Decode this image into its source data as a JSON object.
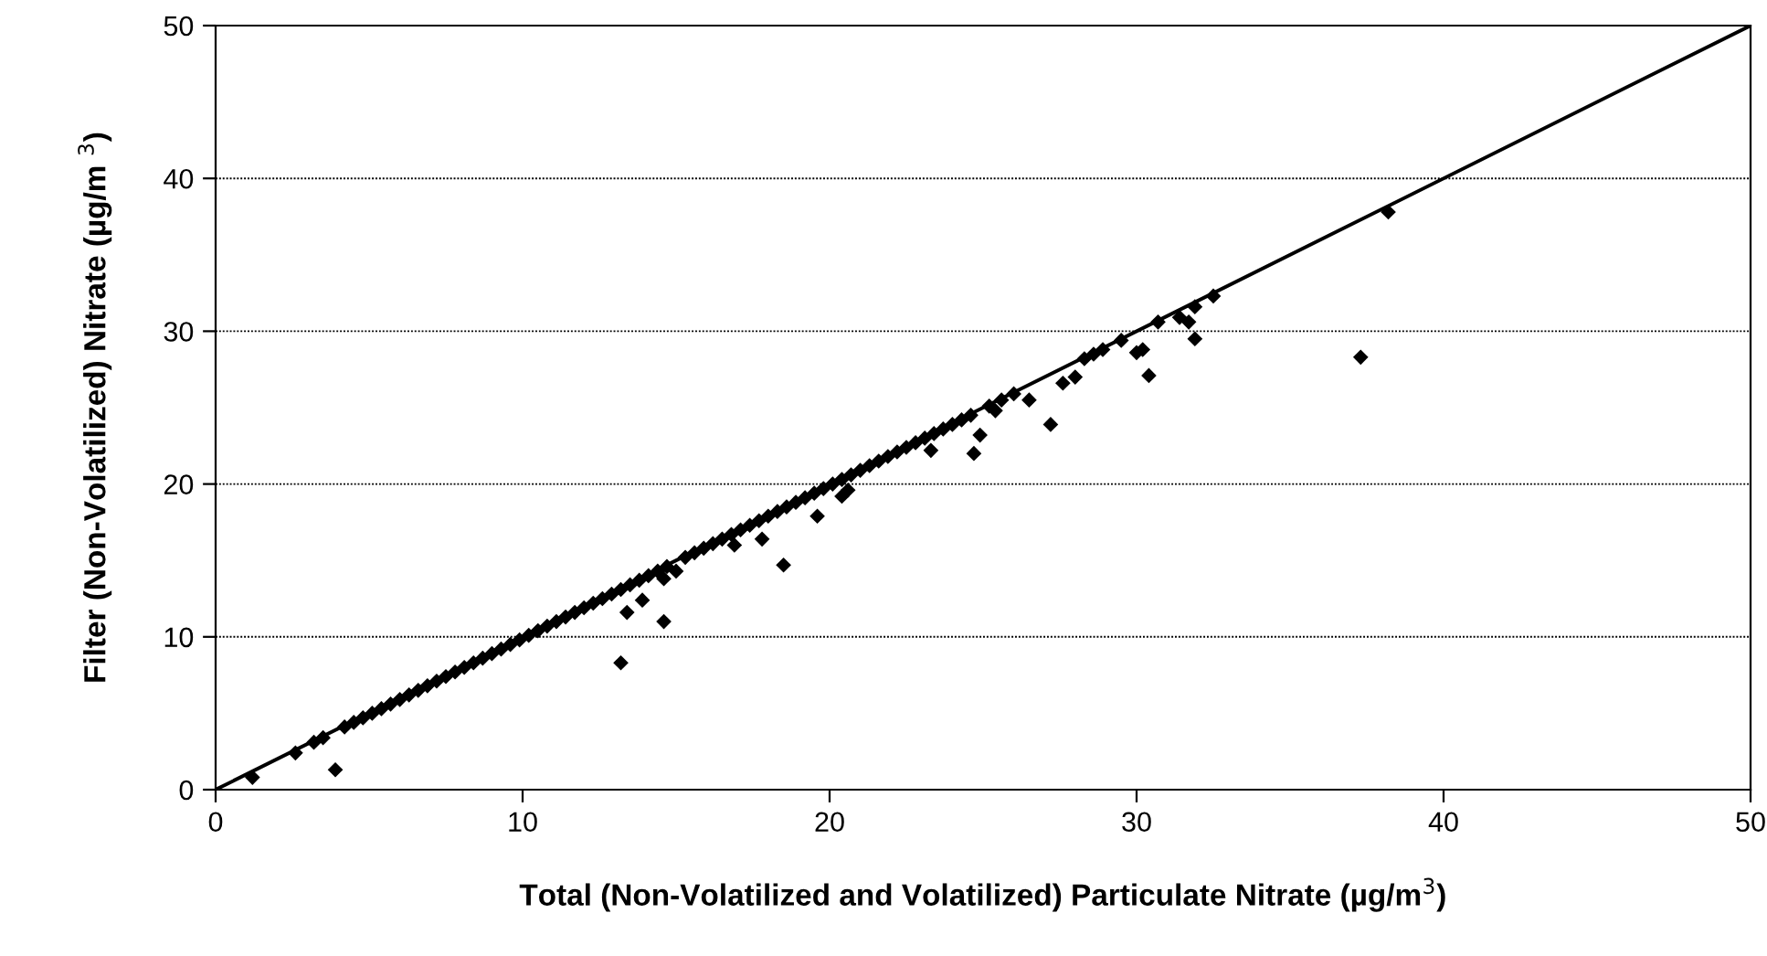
{
  "chart_data": {
    "type": "scatter",
    "xlabel": "Total (Non-Volatilized and Volatilized) Particulate Nitrate (µg/m$^{3}$)",
    "ylabel": "Filter (Non-Volatilized) Nitrate (µg/m $^{3}$)",
    "xlim": [
      0,
      50
    ],
    "ylim": [
      0,
      50
    ],
    "xticks": [
      0,
      10,
      20,
      30,
      40,
      50
    ],
    "yticks": [
      0,
      10,
      20,
      30,
      40,
      50
    ],
    "grid": "y",
    "marker": "diamond",
    "legend": false,
    "series": [
      {
        "color": "#000000",
        "x": [
          1.2,
          2.6,
          3.2,
          3.5,
          3.9,
          4.2,
          4.5,
          4.8,
          5.1,
          5.4,
          5.7,
          6.0,
          6.3,
          6.6,
          6.9,
          7.2,
          7.5,
          7.8,
          8.1,
          8.4,
          8.7,
          9.0,
          9.3,
          9.6,
          9.9,
          10.2,
          10.5,
          10.8,
          11.1,
          11.4,
          11.7,
          12.0,
          12.3,
          12.6,
          12.9,
          13.2,
          13.2,
          13.4,
          13.5,
          13.8,
          13.9,
          14.1,
          14.4,
          14.6,
          14.6,
          14.7,
          15.0,
          15.3,
          15.6,
          15.9,
          16.2,
          16.5,
          16.8,
          16.9,
          17.1,
          17.4,
          17.7,
          17.8,
          18.0,
          18.3,
          18.5,
          18.6,
          18.9,
          19.2,
          19.5,
          19.6,
          19.8,
          20.1,
          20.4,
          20.4,
          20.6,
          20.7,
          21.0,
          21.3,
          21.6,
          21.9,
          22.2,
          22.5,
          22.8,
          23.1,
          23.3,
          23.4,
          23.7,
          24.0,
          24.3,
          24.6,
          24.7,
          24.9,
          25.2,
          25.4,
          25.6,
          26.0,
          26.5,
          27.2,
          27.6,
          28.0,
          28.3,
          28.6,
          28.9,
          29.5,
          30.0,
          30.2,
          30.4,
          30.7,
          31.4,
          31.7,
          31.9,
          31.9,
          32.5,
          37.3,
          38.2
        ],
        "values": [
          0.8,
          2.4,
          3.1,
          3.4,
          1.3,
          4.1,
          4.4,
          4.7,
          5.0,
          5.3,
          5.6,
          5.9,
          6.2,
          6.5,
          6.8,
          7.1,
          7.4,
          7.7,
          8.0,
          8.3,
          8.6,
          8.9,
          9.2,
          9.5,
          9.8,
          10.1,
          10.4,
          10.7,
          11.0,
          11.3,
          11.6,
          11.9,
          12.2,
          12.5,
          12.8,
          8.3,
          13.1,
          11.6,
          13.4,
          13.7,
          12.4,
          14.0,
          14.3,
          11.0,
          13.8,
          14.6,
          14.3,
          15.2,
          15.5,
          15.8,
          16.1,
          16.4,
          16.7,
          16.0,
          17.0,
          17.3,
          17.6,
          16.4,
          17.9,
          18.2,
          14.7,
          18.5,
          18.8,
          19.1,
          19.4,
          17.9,
          19.7,
          20.0,
          20.3,
          19.2,
          19.6,
          20.6,
          20.9,
          21.2,
          21.5,
          21.8,
          22.1,
          22.4,
          22.7,
          23.0,
          22.2,
          23.3,
          23.6,
          23.9,
          24.2,
          24.5,
          22.0,
          23.2,
          25.1,
          24.8,
          25.5,
          25.9,
          25.5,
          23.9,
          26.6,
          27.0,
          28.2,
          28.5,
          28.8,
          29.4,
          28.6,
          28.8,
          27.1,
          30.6,
          30.9,
          30.6,
          29.5,
          31.6,
          32.3,
          28.3,
          37.8
        ]
      },
      {
        "type": "line",
        "color": "#000000",
        "x": [
          0,
          50
        ],
        "values": [
          0,
          50
        ],
        "marker": "none"
      }
    ]
  }
}
